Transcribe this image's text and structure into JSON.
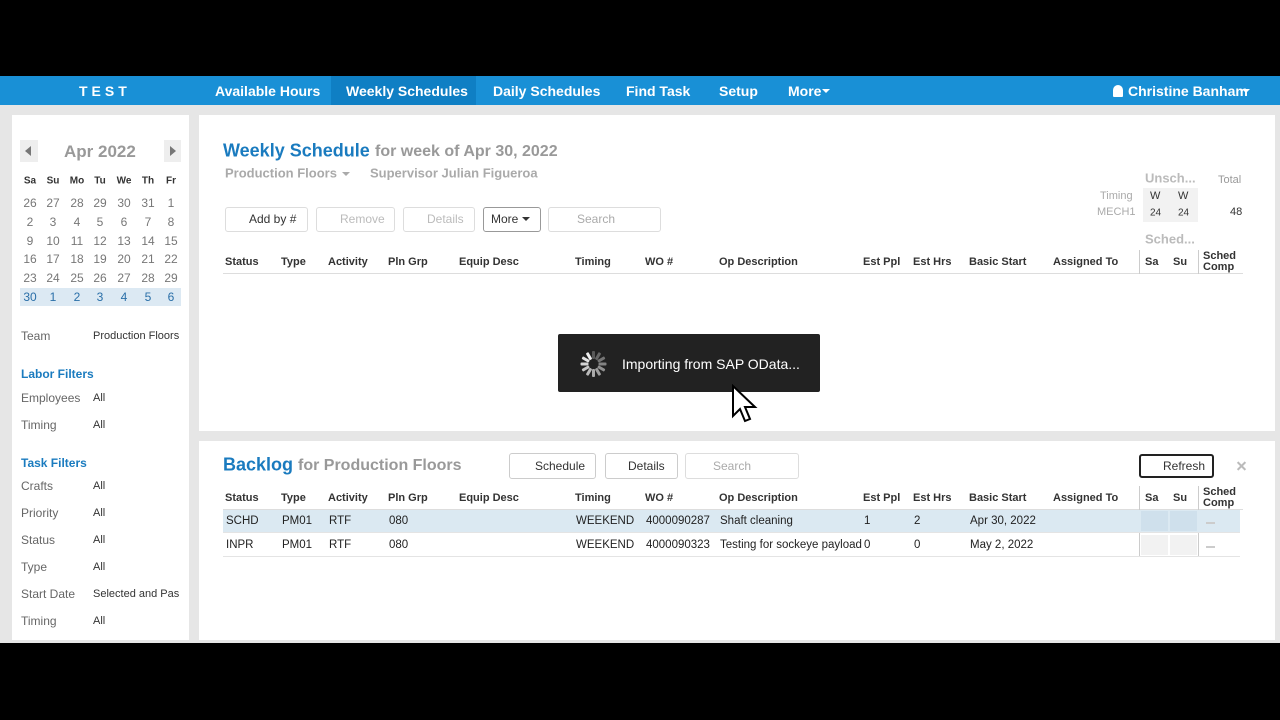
{
  "nav": {
    "brand": "TEST",
    "items": [
      "Available Hours",
      "Weekly Schedules",
      "Daily Schedules",
      "Find Task",
      "Setup",
      "More"
    ],
    "active": 1,
    "user": "Christine Banham"
  },
  "calendar": {
    "month": "Apr 2022",
    "weekdays": [
      "Sa",
      "Su",
      "Mo",
      "Tu",
      "We",
      "Th",
      "Fr"
    ],
    "weeks": [
      [
        "26",
        "27",
        "28",
        "29",
        "30",
        "31",
        "1"
      ],
      [
        "2",
        "3",
        "4",
        "5",
        "6",
        "7",
        "8"
      ],
      [
        "9",
        "10",
        "11",
        "12",
        "13",
        "14",
        "15"
      ],
      [
        "16",
        "17",
        "18",
        "19",
        "20",
        "21",
        "22"
      ],
      [
        "23",
        "24",
        "25",
        "26",
        "27",
        "28",
        "29"
      ],
      [
        "30",
        "1",
        "2",
        "3",
        "4",
        "5",
        "6"
      ]
    ]
  },
  "filters": {
    "team": {
      "label": "Team",
      "value": "Production Floors"
    },
    "labor": {
      "title": "Labor Filters",
      "rows": [
        [
          "Employees",
          "All"
        ],
        [
          "Timing",
          "All"
        ]
      ]
    },
    "task": {
      "title": "Task Filters",
      "rows": [
        [
          "Crafts",
          "All"
        ],
        [
          "Priority",
          "All"
        ],
        [
          "Status",
          "All"
        ],
        [
          "Type",
          "All"
        ],
        [
          "Start Date",
          "Selected and Pas"
        ],
        [
          "Timing",
          "All"
        ]
      ]
    }
  },
  "weekly": {
    "title": "Weekly Schedule",
    "subtitle": "for week of Apr 30, 2022",
    "team": "Production Floors",
    "supervisor": "Supervisor Julian Figueroa",
    "buttons": [
      "Add by #",
      "Remove",
      "Details",
      "More"
    ],
    "search": "Search",
    "columns": [
      "Status",
      "Type",
      "Activity",
      "Pln Grp",
      "Equip Desc",
      "Timing",
      "WO #",
      "Op Description",
      "Est Ppl",
      "Est Hrs",
      "Basic Start",
      "Assigned To",
      "Sa",
      "Su",
      "Sched Comp"
    ],
    "summary": {
      "unscheduled": "Unsch...",
      "total": "Total",
      "timing": "Timing",
      "group": "MECH1",
      "days": [
        "W",
        "W"
      ],
      "hours": [
        "24",
        "24"
      ],
      "total_hours": "48",
      "scheduled": "Sched..."
    }
  },
  "toast": "Importing from SAP OData...",
  "backlog": {
    "title": "Backlog",
    "subtitle": "for Production Floors",
    "buttons": [
      "Schedule",
      "Details"
    ],
    "search": "Search",
    "refresh": "Refresh",
    "columns": [
      "Status",
      "Type",
      "Activity",
      "Pln Grp",
      "Equip Desc",
      "Timing",
      "WO #",
      "Op Description",
      "Est Ppl",
      "Est Hrs",
      "Basic Start",
      "Assigned To",
      "Sa",
      "Su",
      "Sched Comp"
    ],
    "rows": [
      [
        "SCHD",
        "PM01",
        "RTF",
        "080",
        "",
        "WEEKEND",
        "4000090287",
        "Shaft cleaning",
        "1",
        "2",
        "Apr 30, 2022",
        ""
      ],
      [
        "INPR",
        "PM01",
        "RTF",
        "080",
        "",
        "WEEKEND",
        "4000090323",
        "Testing for sockeye payload",
        "0",
        "0",
        "May 2, 2022",
        ""
      ]
    ]
  }
}
